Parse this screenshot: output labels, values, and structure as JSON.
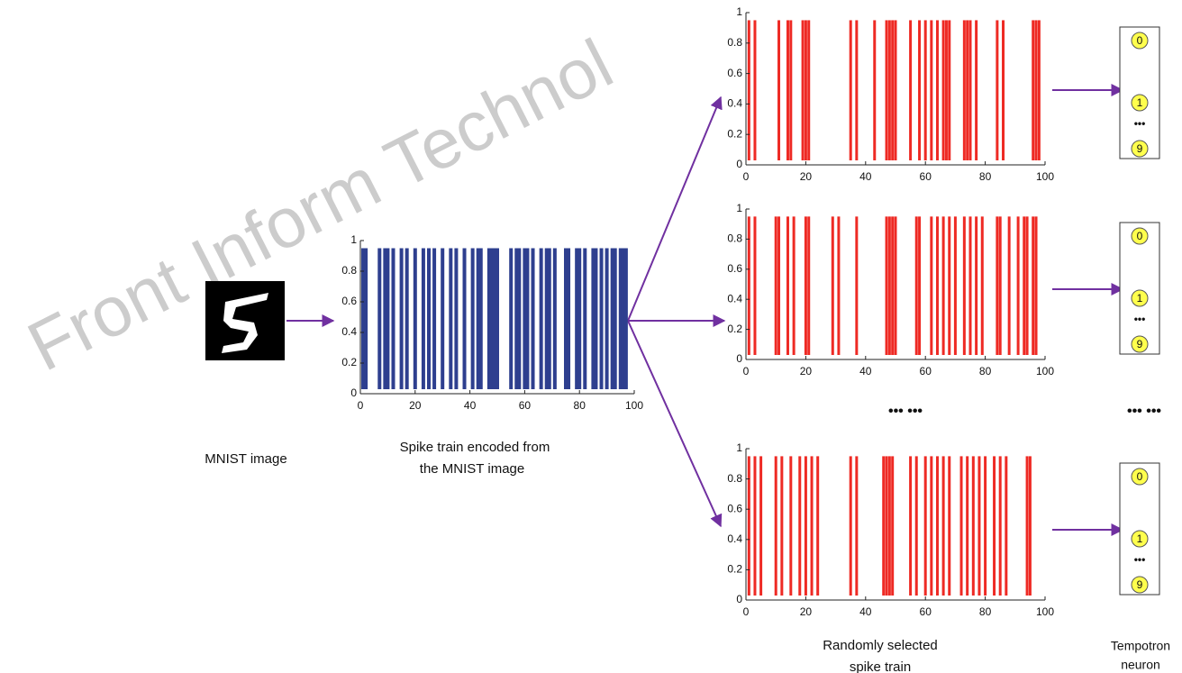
{
  "watermark": "Front Inform Technol",
  "labels": {
    "mnist": "MNIST image",
    "encoded": [
      "Spike train encoded from",
      "the MNIST image"
    ],
    "selected": [
      "Randomly selected",
      "spike train"
    ],
    "neuron": [
      "Tempotron",
      "neuron"
    ]
  },
  "ellipses": [
    "••• •••",
    "••• •••"
  ],
  "neuron_groups": [
    {
      "labels": [
        "0",
        "1",
        "9"
      ],
      "ellipsis": "•••"
    },
    {
      "labels": [
        "0",
        "1",
        "9"
      ],
      "ellipsis": "•••"
    },
    {
      "labels": [
        "0",
        "1",
        "9"
      ],
      "ellipsis": "•••"
    }
  ],
  "chart_data": [
    {
      "type": "spike",
      "color": "#2e3f8f",
      "x": [
        1,
        2,
        7,
        9,
        10,
        12,
        15,
        17,
        20,
        23,
        25,
        27,
        30,
        33,
        35,
        38,
        41,
        43,
        44,
        47,
        48,
        49,
        50,
        55,
        57,
        58,
        60,
        61,
        63,
        66,
        68,
        69,
        71,
        75,
        76,
        79,
        80,
        82,
        85,
        86,
        88,
        90,
        92,
        93,
        95,
        96,
        97
      ],
      "values": [
        0.95,
        0.95,
        0.95,
        0.95,
        0.95,
        0.95,
        0.95,
        0.95,
        0.95,
        0.95,
        0.95,
        0.95,
        0.95,
        0.95,
        0.95,
        0.95,
        0.95,
        0.95,
        0.95,
        0.95,
        0.95,
        0.95,
        0.95,
        0.95,
        0.95,
        0.95,
        0.95,
        0.95,
        0.95,
        0.95,
        0.95,
        0.95,
        0.95,
        0.95,
        0.95,
        0.95,
        0.95,
        0.95,
        0.95,
        0.95,
        0.95,
        0.95,
        0.95,
        0.95,
        0.95,
        0.95,
        0.95
      ],
      "xlim": [
        0,
        100
      ],
      "ylim": [
        0,
        1
      ],
      "xticks": [
        0,
        20,
        40,
        60,
        80,
        100
      ],
      "yticks": [
        0,
        0.2,
        0.4,
        0.6,
        0.8,
        1
      ]
    },
    {
      "type": "spike",
      "color": "#ee2a24",
      "x": [
        1,
        3,
        11,
        14,
        15,
        19,
        20,
        21,
        35,
        37,
        43,
        47,
        48,
        49,
        50,
        55,
        58,
        60,
        62,
        64,
        66,
        67,
        68,
        73,
        74,
        75,
        77,
        84,
        86,
        96,
        97,
        98
      ],
      "values": [
        0.95,
        0.95,
        0.95,
        0.95,
        0.95,
        0.95,
        0.95,
        0.95,
        0.95,
        0.95,
        0.95,
        0.95,
        0.95,
        0.95,
        0.95,
        0.95,
        0.95,
        0.95,
        0.95,
        0.95,
        0.95,
        0.95,
        0.95,
        0.95,
        0.95,
        0.95,
        0.95,
        0.95,
        0.95,
        0.95,
        0.95,
        0.95
      ],
      "xlim": [
        0,
        100
      ],
      "ylim": [
        0,
        1
      ],
      "xticks": [
        0,
        20,
        40,
        60,
        80,
        100
      ],
      "yticks": [
        0,
        0.2,
        0.4,
        0.6,
        0.8,
        1
      ]
    },
    {
      "type": "spike",
      "color": "#ee2a24",
      "x": [
        1,
        3,
        10,
        11,
        14,
        16,
        20,
        21,
        29,
        31,
        37,
        47,
        48,
        49,
        50,
        57,
        58,
        62,
        64,
        66,
        68,
        70,
        73,
        75,
        77,
        79,
        84,
        85,
        88,
        91,
        93,
        94,
        96,
        97
      ],
      "values": [
        0.95,
        0.95,
        0.95,
        0.95,
        0.95,
        0.95,
        0.95,
        0.95,
        0.95,
        0.95,
        0.95,
        0.95,
        0.95,
        0.95,
        0.95,
        0.95,
        0.95,
        0.95,
        0.95,
        0.95,
        0.95,
        0.95,
        0.95,
        0.95,
        0.95,
        0.95,
        0.95,
        0.95,
        0.95,
        0.95,
        0.95,
        0.95,
        0.95,
        0.95
      ],
      "xlim": [
        0,
        100
      ],
      "ylim": [
        0,
        1
      ],
      "xticks": [
        0,
        20,
        40,
        60,
        80,
        100
      ],
      "yticks": [
        0,
        0.2,
        0.4,
        0.6,
        0.8,
        1
      ]
    },
    {
      "type": "spike",
      "color": "#ee2a24",
      "x": [
        1,
        3,
        5,
        10,
        12,
        15,
        18,
        20,
        22,
        24,
        35,
        37,
        46,
        47,
        48,
        49,
        55,
        57,
        60,
        62,
        64,
        66,
        68,
        72,
        74,
        76,
        78,
        80,
        83,
        85,
        87,
        94,
        95
      ],
      "values": [
        0.95,
        0.95,
        0.95,
        0.95,
        0.95,
        0.95,
        0.95,
        0.95,
        0.95,
        0.95,
        0.95,
        0.95,
        0.95,
        0.95,
        0.95,
        0.95,
        0.95,
        0.95,
        0.95,
        0.95,
        0.95,
        0.95,
        0.95,
        0.95,
        0.95,
        0.95,
        0.95,
        0.95,
        0.95,
        0.95,
        0.95,
        0.95,
        0.95
      ],
      "xlim": [
        0,
        100
      ],
      "ylim": [
        0,
        1
      ],
      "xticks": [
        0,
        20,
        40,
        60,
        80,
        100
      ],
      "yticks": [
        0,
        0.2,
        0.4,
        0.6,
        0.8,
        1
      ]
    }
  ]
}
